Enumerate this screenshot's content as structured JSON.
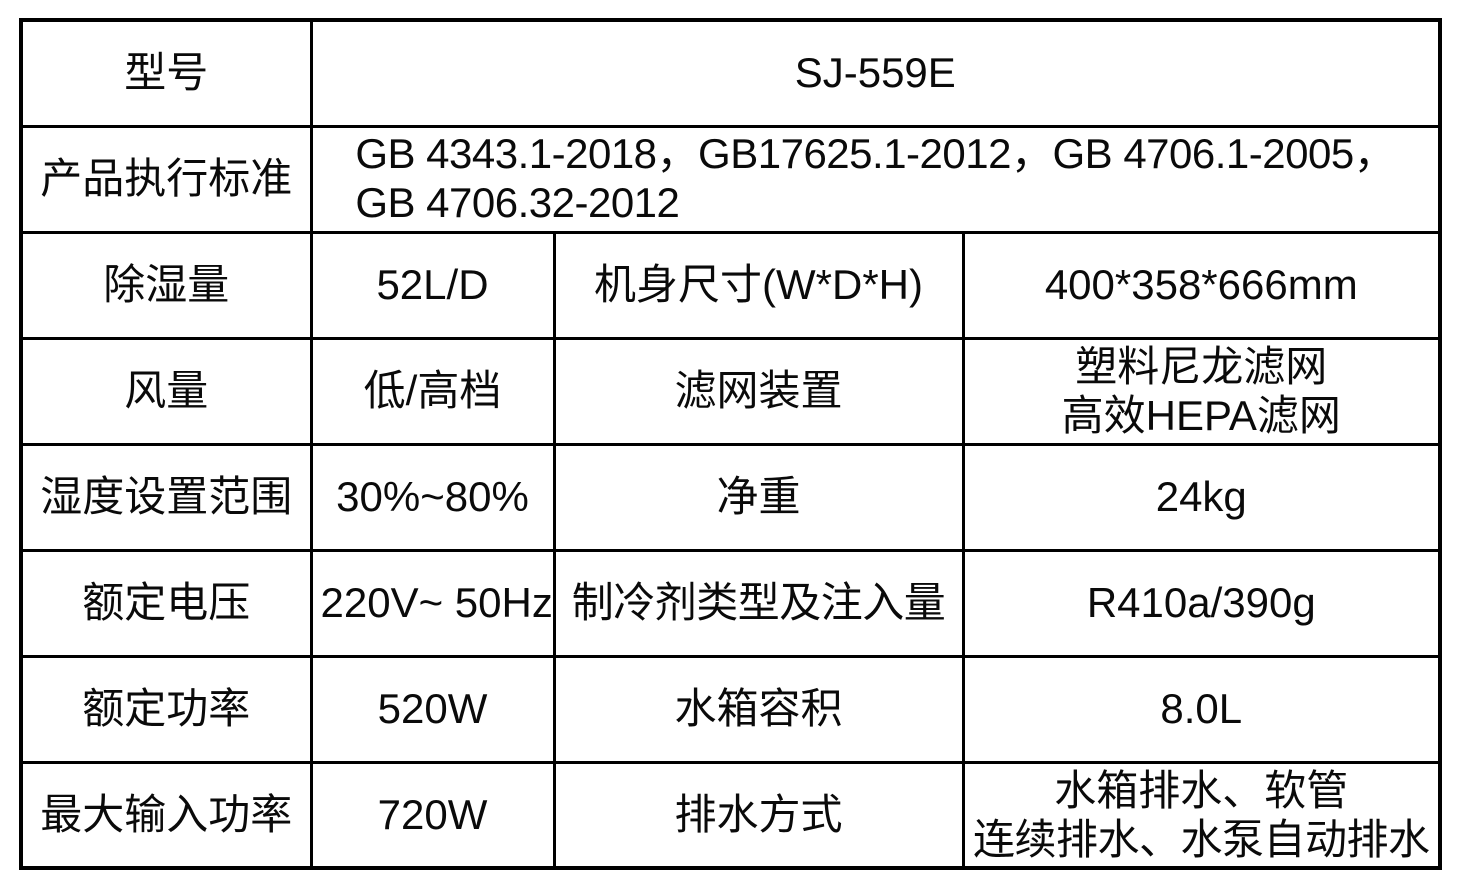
{
  "colors": {
    "background": "#ffffff",
    "border": "#000000",
    "text": "#0a0a0a"
  },
  "table": {
    "rows": [
      {
        "label": "型号",
        "value": "SJ-559E"
      },
      {
        "label": "产品执行标准",
        "value_lines": [
          "GB 4343.1-2018，GB17625.1-2012，GB 4706.1-2005，",
          "GB 4706.32-2012"
        ]
      },
      {
        "label1": "除湿量",
        "value1": "52L/D",
        "label2": "机身尺寸(W*D*H)",
        "value2_lines": [
          "400*358*666mm"
        ]
      },
      {
        "label1": "风量",
        "value1": "低/高档",
        "label2": "滤网装置",
        "value2_lines": [
          "塑料尼龙滤网",
          "高效HEPA滤网"
        ]
      },
      {
        "label1": "湿度设置范围",
        "value1": "30%~80%",
        "label2": "净重",
        "value2_lines": [
          "24kg"
        ]
      },
      {
        "label1": "额定电压",
        "value1": "220V~ 50Hz",
        "label2": "制冷剂类型及注入量",
        "value2_lines": [
          "R410a/390g"
        ]
      },
      {
        "label1": "额定功率",
        "value1": "520W",
        "label2": "水箱容积",
        "value2_lines": [
          "8.0L"
        ]
      },
      {
        "label1": "最大输入功率",
        "value1": "720W",
        "label2": "排水方式",
        "value2_lines": [
          "水箱排水、软管",
          "连续排水、水泵自动排水"
        ]
      }
    ]
  }
}
